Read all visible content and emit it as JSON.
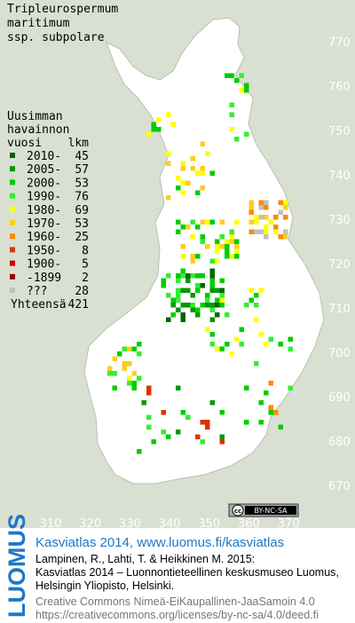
{
  "title": [
    "Tripleurospermum",
    "maritimum",
    "ssp. subpolare"
  ],
  "legend": {
    "heading": [
      "Uusimman",
      "havainnon",
      "vuosi"
    ],
    "count_heading": "lkm",
    "entries": [
      {
        "label": "2010-",
        "count": 45,
        "color": "#006600"
      },
      {
        "label": "2005-",
        "count": 57,
        "color": "#009900"
      },
      {
        "label": "2000-",
        "count": 53,
        "color": "#00cc00"
      },
      {
        "label": "1990-",
        "count": 76,
        "color": "#33ee33"
      },
      {
        "label": "1980-",
        "count": 69,
        "color": "#ffff00"
      },
      {
        "label": "1970-",
        "count": 53,
        "color": "#ffcc22"
      },
      {
        "label": "1960-",
        "count": 25,
        "color": "#ff8800"
      },
      {
        "label": "1950-",
        "count": 8,
        "color": "#dd3300"
      },
      {
        "label": "1900-",
        "count": 5,
        "color": "#cc0000"
      },
      {
        "label": "-1899",
        "count": 2,
        "color": "#990000"
      },
      {
        "label": "???",
        "count": 28,
        "color": "#c0c0c0"
      }
    ],
    "total_label": "Yhteensä",
    "total": 421
  },
  "map": {
    "x_ticks": [
      310,
      320,
      330,
      340,
      350,
      360,
      370
    ],
    "y_ticks": [
      770,
      760,
      750,
      740,
      730,
      720,
      710,
      700,
      690,
      680,
      670
    ]
  },
  "license_badge": [
    "cc",
    "BY-NC-SA"
  ],
  "footer": {
    "logo": "LUOMUS",
    "headline": "Kasviatlas 2014, www.luomus.fi/kasviatlas",
    "citation": [
      "Lampinen, R., Lahti, T. & Heikkinen M. 2015:",
      "Kasviatlas 2014 – Luonnontieteellinen keskusmuseo Luomus,",
      "Helsingin Yliopisto, Helsinki."
    ],
    "license": [
      "Creative Commons Nimeä-EiKaupallinen-JaaSamoin 4.0",
      "https://creativecommons.org/licenses/by-nc-sa/4.0/deed.fi"
    ]
  }
}
